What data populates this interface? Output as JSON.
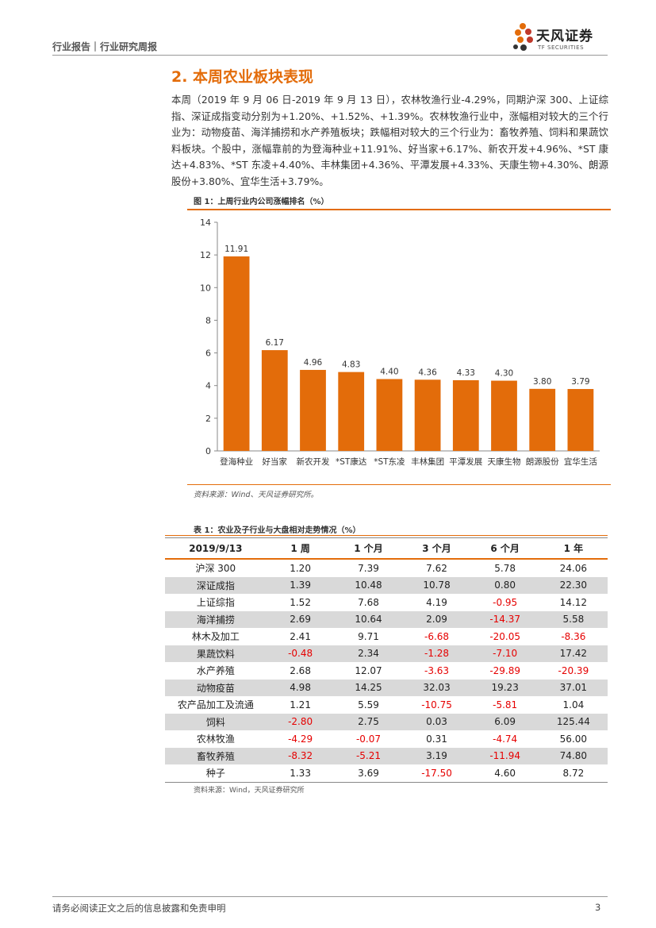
{
  "header": {
    "breadcrumb": "行业报告｜行业研究周报",
    "logo_cn": "天风证券",
    "logo_en": "TF SECURITIES"
  },
  "section": {
    "title": "2. 本周农业板块表现",
    "paragraph": "本周（2019 年 9 月 06 日-2019 年 9 月 13 日），农林牧渔行业-4.29%，同期沪深 300、上证综指、深证成指变动分别为+1.20%、+1.52%、+1.39%。农林牧渔行业中，涨幅相对较大的三个行业为：动物疫苗、海洋捕捞和水产养殖板块；跌幅相对较大的三个行业为：畜牧养殖、饲料和果蔬饮料板块。个股中，涨幅靠前的为登海种业+11.91%、好当家+6.17%、新农开发+4.96%、*ST 康达+4.83%、*ST 东凌+4.40%、丰林集团+4.36%、平潭发展+4.33%、天康生物+4.30%、朗源股份+3.80%、宜华生活+3.79%。"
  },
  "figure": {
    "title": "图 1：上周行业内公司涨幅排名（%）",
    "source": "资料来源：Wind、天风证券研究所。"
  },
  "chart_data": {
    "type": "bar",
    "categories": [
      "登海种业",
      "好当家",
      "新农开发",
      "*ST康达",
      "*ST东凌",
      "丰林集团",
      "平潭发展",
      "天康生物",
      "朗源股份",
      "宜华生活"
    ],
    "values": [
      11.91,
      6.17,
      4.96,
      4.83,
      4.4,
      4.36,
      4.33,
      4.3,
      3.8,
      3.79
    ],
    "value_labels": [
      "11.91",
      "6.17",
      "4.96",
      "4.83",
      "4.40",
      "4.36",
      "4.33",
      "4.30",
      "3.80",
      "3.79"
    ],
    "yticks": [
      "0",
      "2",
      "4",
      "6",
      "8",
      "10",
      "12",
      "14"
    ],
    "ylim": [
      0,
      14
    ],
    "bar_color": "#e36c0a",
    "grid": false,
    "legend": "none"
  },
  "table": {
    "title": "表 1：农业及子行业与大盘相对走势情况（%）",
    "headers": [
      "2019/9/13",
      "1 周",
      "1 个月",
      "3 个月",
      "6 个月",
      "1 年"
    ],
    "rows": [
      [
        "沪深 300",
        "1.20",
        "7.39",
        "7.62",
        "5.78",
        "24.06"
      ],
      [
        "深证成指",
        "1.39",
        "10.48",
        "10.78",
        "0.80",
        "22.30"
      ],
      [
        "上证综指",
        "1.52",
        "7.68",
        "4.19",
        "-0.95",
        "14.12"
      ],
      [
        "海洋捕捞",
        "2.69",
        "10.64",
        "2.09",
        "-14.37",
        "5.58"
      ],
      [
        "林木及加工",
        "2.41",
        "9.71",
        "-6.68",
        "-20.05",
        "-8.36"
      ],
      [
        "果蔬饮料",
        "-0.48",
        "2.34",
        "-1.28",
        "-7.10",
        "17.42"
      ],
      [
        "水产养殖",
        "2.68",
        "12.07",
        "-3.63",
        "-29.89",
        "-20.39"
      ],
      [
        "动物疫苗",
        "4.98",
        "14.25",
        "32.03",
        "19.23",
        "37.01"
      ],
      [
        "农产品加工及流通",
        "1.21",
        "5.59",
        "-10.75",
        "-5.81",
        "1.04"
      ],
      [
        "饲料",
        "-2.80",
        "2.75",
        "0.03",
        "6.09",
        "125.44"
      ],
      [
        "农林牧渔",
        "-4.29",
        "-0.07",
        "0.31",
        "-4.74",
        "56.00"
      ],
      [
        "畜牧养殖",
        "-8.32",
        "-5.21",
        "3.19",
        "-11.94",
        "74.80"
      ],
      [
        "种子",
        "1.33",
        "3.69",
        "-17.50",
        "4.60",
        "8.72"
      ]
    ],
    "source": "资料来源：Wind，天风证券研究所"
  },
  "footer": {
    "disclaimer": "请务必阅读正文之后的信息披露和免责申明",
    "page": "3"
  },
  "colors": {
    "accent": "#e36c0a",
    "negative": "#e60000",
    "shade": "#d9d9d9"
  }
}
